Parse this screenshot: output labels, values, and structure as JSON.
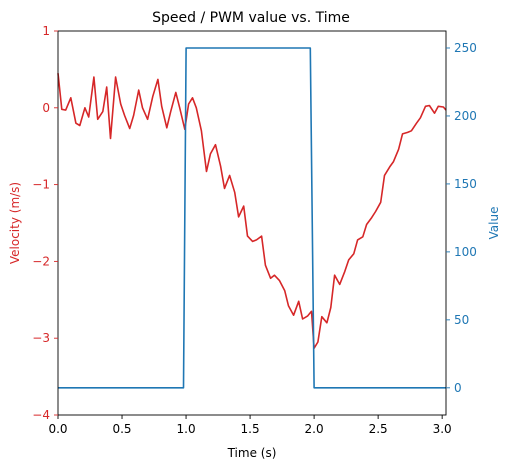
{
  "chart_data": {
    "type": "line",
    "title": "Speed / PWM value vs. Time",
    "xlabel": "Time (s)",
    "xlim": [
      0.0,
      3.03
    ],
    "x_ticks": [
      "0.0",
      "0.5",
      "1.0",
      "1.5",
      "2.0",
      "2.5",
      "3.0"
    ],
    "x_tick_values": [
      0.0,
      0.5,
      1.0,
      1.5,
      2.0,
      2.5,
      3.0
    ],
    "left_axis": {
      "label": "Velocity (m/s)",
      "color": "#d62728",
      "ylim": [
        -4,
        1
      ],
      "ticks": [
        "−4",
        "−3",
        "−2",
        "−1",
        "0",
        "1"
      ],
      "tick_values": [
        -4,
        -3,
        -2,
        -1,
        0,
        1
      ]
    },
    "right_axis": {
      "label": "Value",
      "color": "#1f77b4",
      "ylim": [
        -20,
        262.5
      ],
      "ticks": [
        "0",
        "50",
        "100",
        "150",
        "200",
        "250"
      ],
      "tick_values": [
        0,
        50,
        100,
        150,
        200,
        250
      ]
    },
    "series": [
      {
        "axis": "left",
        "color": "#d62728",
        "x": [
          0.0,
          0.03,
          0.06,
          0.1,
          0.14,
          0.17,
          0.21,
          0.24,
          0.28,
          0.31,
          0.35,
          0.38,
          0.41,
          0.45,
          0.49,
          0.52,
          0.56,
          0.59,
          0.63,
          0.66,
          0.7,
          0.74,
          0.78,
          0.81,
          0.85,
          0.88,
          0.92,
          0.95,
          0.99,
          1.02,
          1.05,
          1.08,
          1.12,
          1.16,
          1.19,
          1.23,
          1.27,
          1.3,
          1.34,
          1.38,
          1.41,
          1.45,
          1.48,
          1.52,
          1.55,
          1.59,
          1.62,
          1.66,
          1.69,
          1.73,
          1.77,
          1.8,
          1.84,
          1.88,
          1.91,
          1.95,
          1.98,
          2.0,
          2.03,
          2.06,
          2.1,
          2.13,
          2.16,
          2.2,
          2.24,
          2.27,
          2.31,
          2.34,
          2.38,
          2.41,
          2.45,
          2.48,
          2.52,
          2.55,
          2.59,
          2.62,
          2.66,
          2.69,
          2.73,
          2.76,
          2.8,
          2.83,
          2.87,
          2.9,
          2.94,
          2.97,
          3.01,
          3.03
        ],
        "y": [
          0.45,
          -0.02,
          -0.03,
          0.13,
          -0.2,
          -0.23,
          0.0,
          -0.12,
          0.4,
          -0.15,
          -0.05,
          0.27,
          -0.4,
          0.4,
          0.05,
          -0.1,
          -0.27,
          -0.1,
          0.23,
          0.0,
          -0.15,
          0.15,
          0.37,
          0.02,
          -0.26,
          -0.05,
          0.2,
          0.0,
          -0.28,
          0.05,
          0.13,
          0.0,
          -0.3,
          -0.83,
          -0.6,
          -0.48,
          -0.76,
          -1.05,
          -0.88,
          -1.1,
          -1.42,
          -1.28,
          -1.67,
          -1.74,
          -1.72,
          -1.67,
          -2.05,
          -2.22,
          -2.18,
          -2.25,
          -2.38,
          -2.58,
          -2.7,
          -2.52,
          -2.75,
          -2.71,
          -2.65,
          -3.13,
          -3.05,
          -2.72,
          -2.8,
          -2.6,
          -2.18,
          -2.3,
          -2.13,
          -1.98,
          -1.9,
          -1.72,
          -1.68,
          -1.52,
          -1.43,
          -1.35,
          -1.23,
          -0.88,
          -0.77,
          -0.7,
          -0.54,
          -0.34,
          -0.32,
          -0.3,
          -0.2,
          -0.13,
          0.02,
          0.03,
          -0.07,
          0.02,
          0.01,
          -0.03
        ]
      },
      {
        "axis": "right",
        "color": "#1f77b4",
        "x": [
          0.0,
          0.98,
          1.0,
          1.97,
          2.0,
          3.03
        ],
        "y": [
          0,
          0,
          250,
          250,
          0,
          0
        ]
      }
    ]
  }
}
